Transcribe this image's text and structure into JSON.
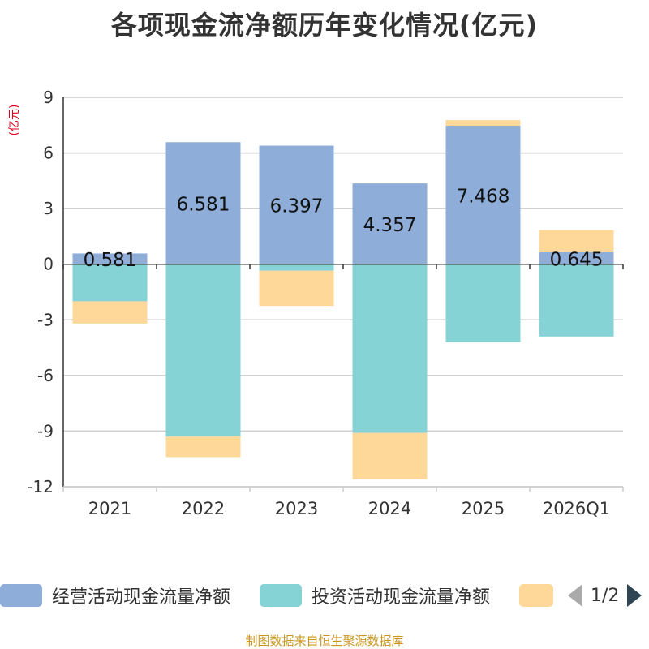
{
  "title": "各项现金流净额历年变化情况(亿元)",
  "source_note": "制图数据来自恒生聚源数据库",
  "legend": {
    "items": [
      {
        "label": "经营活动现金流量净额",
        "color": "#8eadd9"
      },
      {
        "label": "投资活动现金流量净额",
        "color": "#86d3d6"
      },
      {
        "label": "",
        "color": "#fdd899"
      }
    ],
    "pager": "1/2"
  },
  "chart_data": {
    "type": "bar",
    "stacked": true,
    "title": "各项现金流净额历年变化情况(亿元)",
    "ylabel": "(亿元)",
    "xlabel": "",
    "ylim": [
      -12,
      9
    ],
    "yticks": [
      9,
      6,
      3,
      0,
      -3,
      -6,
      -9,
      -12
    ],
    "categories": [
      "2021",
      "2022",
      "2023",
      "2024",
      "2025",
      "2026Q1"
    ],
    "series": [
      {
        "name": "经营活动现金流量净额",
        "color": "#8eadd9",
        "values": [
          0.581,
          6.581,
          6.397,
          4.357,
          7.468,
          0.645
        ],
        "labels": [
          "0.581",
          "6.581",
          "6.397",
          "4.357",
          "7.468",
          "0.645"
        ]
      },
      {
        "name": "投资活动现金流量净额",
        "color": "#86d3d6",
        "values": [
          -2.0,
          -9.3,
          -0.35,
          -9.1,
          -4.2,
          -3.9
        ]
      },
      {
        "name": "",
        "color": "#fdd899",
        "values": [
          -1.2,
          -1.1,
          -1.9,
          -2.5,
          0.3,
          1.2
        ]
      }
    ],
    "grid": true,
    "legend_position": "bottom"
  }
}
